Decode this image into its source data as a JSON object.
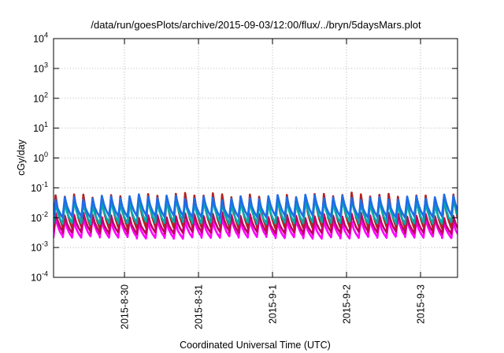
{
  "chart_data": {
    "type": "line",
    "title": "/data/run/goesPlots/archive/2015-09-03/12:00/flux/../bryn/5daysMars.plot",
    "xlabel": "Coordinated Universal Time (UTC)",
    "ylabel": "cGy/day",
    "y_scale": "log",
    "ylim": [
      0.0001,
      10000
    ],
    "y_ticks": [
      {
        "base": "10",
        "exp": "-4",
        "value": 0.0001
      },
      {
        "base": "10",
        "exp": "-3",
        "value": 0.001
      },
      {
        "base": "10",
        "exp": "-2",
        "value": 0.01
      },
      {
        "base": "10",
        "exp": "-1",
        "value": 0.1
      },
      {
        "base": "10",
        "exp": "0",
        "value": 1
      },
      {
        "base": "10",
        "exp": "1",
        "value": 10
      },
      {
        "base": "10",
        "exp": "2",
        "value": 100
      },
      {
        "base": "10",
        "exp": "3",
        "value": 1000
      },
      {
        "base": "10",
        "exp": "4",
        "value": 10000
      }
    ],
    "x_start": "2015-08-29T01:00",
    "x_end": "2015-09-03T12:00",
    "x_ticks": [
      {
        "label": "2015-8-30",
        "value": "2015-08-30T00:00"
      },
      {
        "label": "2015-8-31",
        "value": "2015-08-31T00:00"
      },
      {
        "label": "2015-9-1",
        "value": "2015-09-01T00:00"
      },
      {
        "label": "2015-9-2",
        "value": "2015-09-02T00:00"
      },
      {
        "label": "2015-9-3",
        "value": "2015-09-03T00:00"
      }
    ],
    "grid": true,
    "grid_style": "dotted",
    "cycle_period_hours": 3,
    "series": [
      {
        "color": "#ff00ff",
        "peak": 0.008,
        "trough": 0.0022
      },
      {
        "color": "#c00060",
        "peak": 0.012,
        "trough": 0.0032
      },
      {
        "color": "#b22222",
        "peak": 0.055,
        "trough": 0.0048
      },
      {
        "color": "#00aaaa",
        "peak": 0.035,
        "trough": 0.0068
      },
      {
        "color": "#1e6ee6",
        "peak": 0.048,
        "trough": 0.011
      }
    ]
  }
}
